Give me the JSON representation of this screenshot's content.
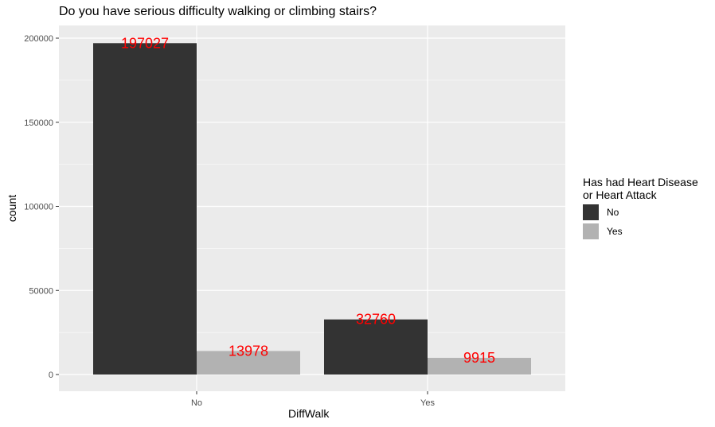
{
  "chart_data": {
    "type": "bar",
    "title": "Do you have serious difficulty walking or climbing stairs?",
    "xlabel": "DiffWalk",
    "ylabel": "count",
    "categories": [
      "No",
      "Yes"
    ],
    "series": [
      {
        "name": "No",
        "values": [
          197027,
          32760
        ],
        "color": "#333333"
      },
      {
        "name": "Yes",
        "values": [
          13978,
          9915
        ],
        "color": "#b2b2b2"
      }
    ],
    "data_labels_color": "#ff0000",
    "ylim": [
      0,
      210000
    ],
    "yticks": [
      0,
      50000,
      100000,
      150000,
      200000
    ],
    "ytick_labels": [
      "0",
      "50000",
      "100000",
      "150000",
      "200000"
    ],
    "grid": true,
    "legend": {
      "title_lines": [
        "Has had Heart Disease",
        "or Heart Attack"
      ],
      "position": "right"
    }
  }
}
